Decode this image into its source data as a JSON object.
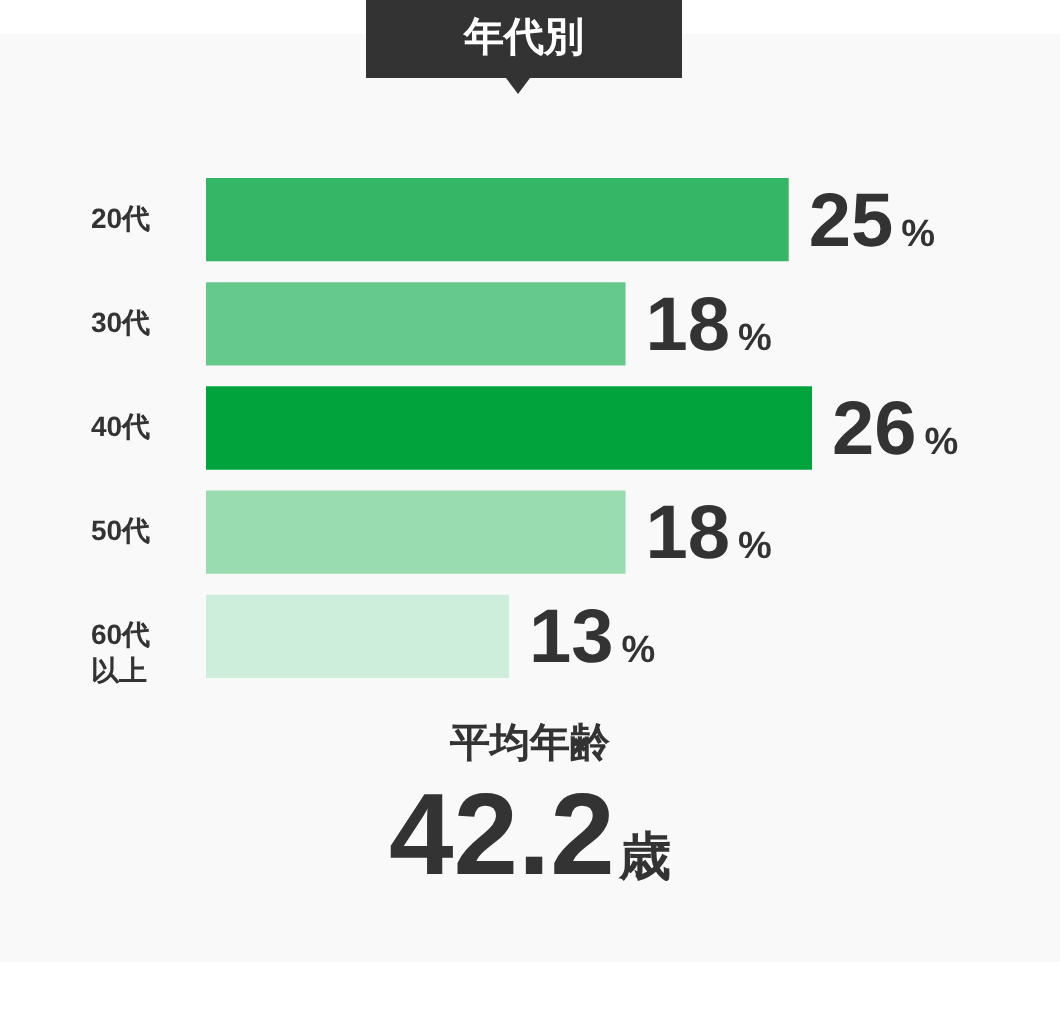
{
  "chart_data": {
    "type": "bar",
    "orientation": "horizontal",
    "title": "年代別",
    "categories": [
      "20代",
      "30代",
      "40代",
      "50代",
      "60代以上"
    ],
    "values": [
      25,
      18,
      26,
      18,
      13
    ],
    "colors": [
      "#35b566",
      "#66c98c",
      "#00a33c",
      "#99dcb0",
      "#cdeedb"
    ],
    "value_labels": [
      "25%",
      "18%",
      "26%",
      "18%",
      "13%"
    ],
    "annotations": [
      "平均年齢",
      "42.2歳"
    ]
  }
}
